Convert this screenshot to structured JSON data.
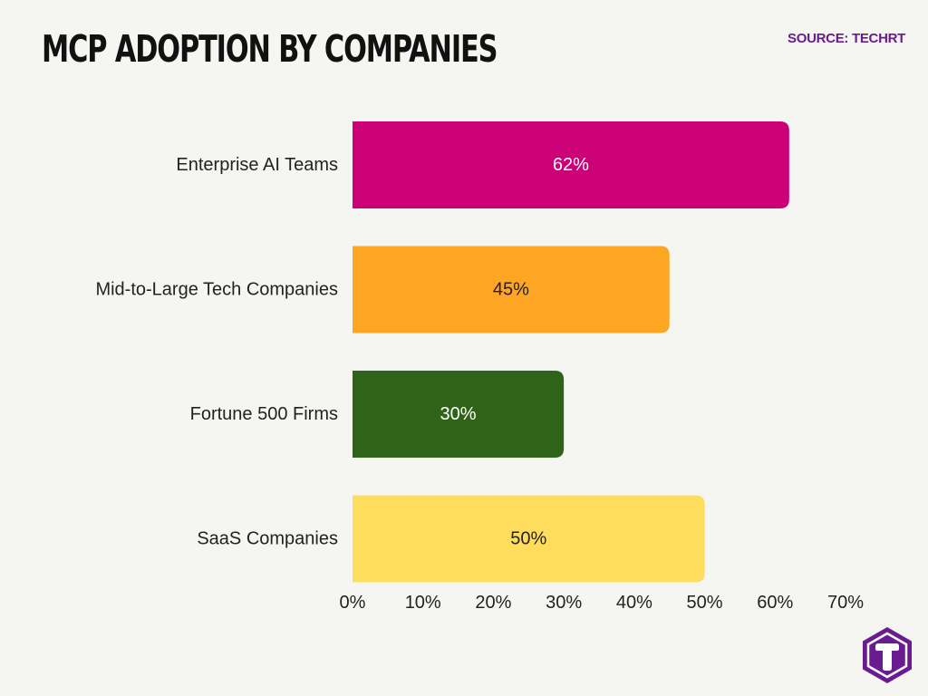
{
  "header": {
    "title": "MCP ADOPTION BY COMPANIES",
    "source": "SOURCE: TECHRT"
  },
  "colors": {
    "background": "#f5f5f2",
    "source_text": "#6a1b8f",
    "logo": "#6a1b8f"
  },
  "logo": {
    "icon": "techrt-t-hexagon-logo"
  },
  "chart_data": {
    "type": "bar",
    "orientation": "horizontal",
    "categories": [
      "Enterprise AI Teams",
      "Mid-to-Large Tech Companies",
      "Fortune 500 Firms",
      "SaaS Companies"
    ],
    "values": [
      62,
      45,
      30,
      50
    ],
    "data_labels": [
      "62%",
      "45%",
      "30%",
      "50%"
    ],
    "bar_colors": [
      "#cc0077",
      "#ffa524",
      "#2e6318",
      "#ffdd5c"
    ],
    "label_colors": [
      "#ffffff",
      "#222222",
      "#ffffff",
      "#222222"
    ],
    "xlim": [
      0,
      70
    ],
    "xticks": [
      0,
      10,
      20,
      30,
      40,
      50,
      60,
      70
    ],
    "xtick_labels": [
      "0%",
      "10%",
      "20%",
      "30%",
      "40%",
      "50%",
      "60%",
      "70%"
    ],
    "title": "MCP ADOPTION BY COMPANIES",
    "xlabel": "",
    "ylabel": "",
    "grid": false,
    "legend": "none"
  }
}
